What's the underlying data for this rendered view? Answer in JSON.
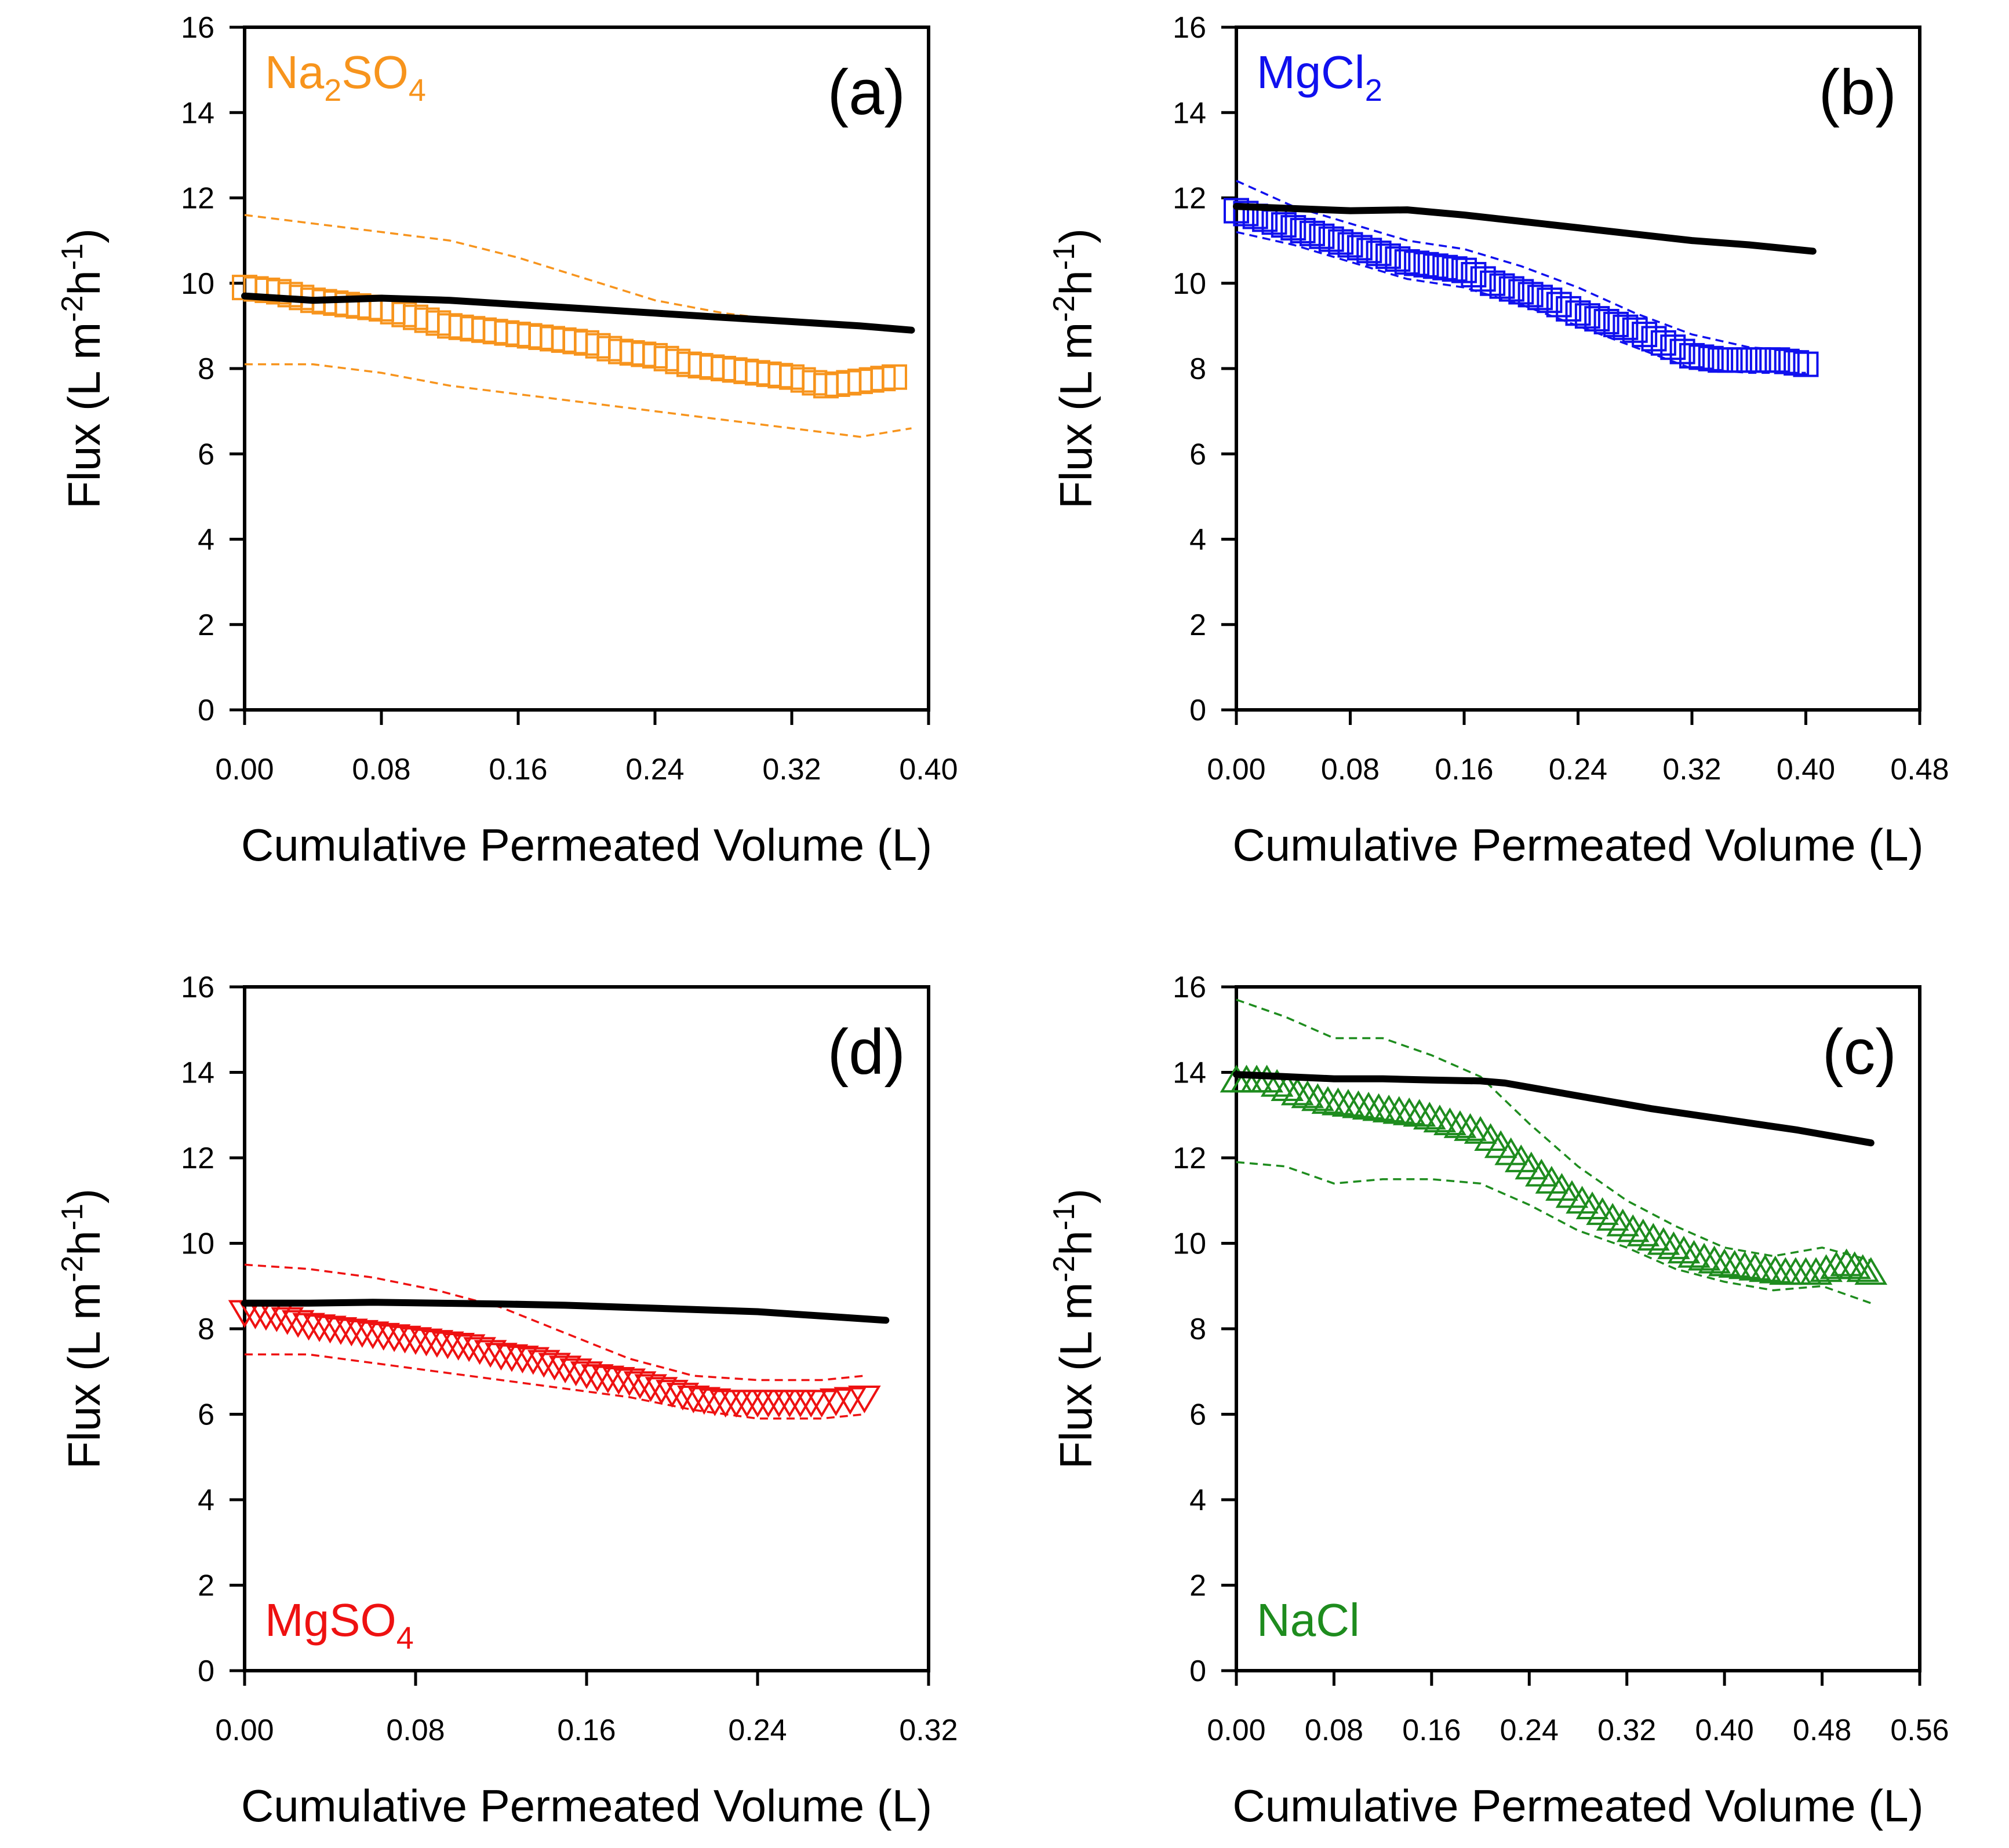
{
  "chart_data": [
    {
      "id": "a",
      "type": "scatter",
      "panel_label": "(a)",
      "title": "",
      "legend": {
        "base": "Na",
        "parts": [
          [
            "Na",
            false
          ],
          [
            "2",
            true
          ],
          [
            "SO",
            false
          ],
          [
            "4",
            true
          ]
        ],
        "color": "#f7941d",
        "position": "top-left"
      },
      "xlabel": "Cumulative Permeated Volume  (L)",
      "ylabel": "Flux  (L m",
      "ylabel_sup1": "-2",
      "ylabel_mid": "h",
      "ylabel_sup2": "-1",
      "ylabel_end": ")",
      "xlim": [
        0,
        0.4
      ],
      "ylim": [
        0,
        16
      ],
      "xticks": [
        "0.00",
        "0.08",
        "0.16",
        "0.24",
        "0.32",
        "0.40"
      ],
      "yticks": [
        "0",
        "2",
        "4",
        "6",
        "8",
        "10",
        "12",
        "14",
        "16"
      ],
      "marker": "square",
      "color": "#f7941d",
      "measured": {
        "x": [
          0.0,
          0.02,
          0.04,
          0.06,
          0.08,
          0.1,
          0.12,
          0.14,
          0.16,
          0.18,
          0.2,
          0.22,
          0.24,
          0.26,
          0.28,
          0.3,
          0.32,
          0.34,
          0.36,
          0.38
        ],
        "y": [
          9.9,
          9.8,
          9.6,
          9.5,
          9.4,
          9.2,
          9.0,
          8.9,
          8.8,
          8.7,
          8.6,
          8.4,
          8.3,
          8.1,
          8.0,
          7.9,
          7.8,
          7.6,
          7.7,
          7.8
        ]
      },
      "upper_band": {
        "x": [
          0.0,
          0.04,
          0.08,
          0.12,
          0.16,
          0.2,
          0.24,
          0.28,
          0.32,
          0.36,
          0.39
        ],
        "y": [
          11.6,
          11.4,
          11.2,
          11.0,
          10.6,
          10.1,
          9.6,
          9.3,
          9.1,
          9.0,
          8.9
        ]
      },
      "lower_band": {
        "x": [
          0.0,
          0.04,
          0.08,
          0.12,
          0.16,
          0.2,
          0.24,
          0.28,
          0.32,
          0.36,
          0.39
        ],
        "y": [
          8.1,
          8.1,
          7.9,
          7.6,
          7.4,
          7.2,
          7.0,
          6.8,
          6.6,
          6.4,
          6.6
        ]
      },
      "model": {
        "x": [
          0.0,
          0.04,
          0.08,
          0.12,
          0.16,
          0.2,
          0.24,
          0.28,
          0.32,
          0.36,
          0.39
        ],
        "y": [
          9.7,
          9.6,
          9.65,
          9.6,
          9.5,
          9.4,
          9.3,
          9.2,
          9.1,
          9.0,
          8.9
        ]
      }
    },
    {
      "id": "b",
      "type": "scatter",
      "panel_label": "(b)",
      "title": "",
      "legend": {
        "parts": [
          [
            "MgCl",
            false
          ],
          [
            "2",
            true
          ]
        ],
        "color": "#1010ee",
        "position": "top-left"
      },
      "xlabel": "Cumulative Permeated Volume  (L)",
      "ylabel": "Flux  (L m",
      "ylabel_sup1": "-2",
      "ylabel_mid": "h",
      "ylabel_sup2": "-1",
      "ylabel_end": ")",
      "xlim": [
        0,
        0.48
      ],
      "ylim": [
        0,
        16
      ],
      "xticks": [
        "0.00",
        "0.08",
        "0.16",
        "0.24",
        "0.32",
        "0.40",
        "0.48"
      ],
      "yticks": [
        "0",
        "2",
        "4",
        "6",
        "8",
        "10",
        "12",
        "14",
        "16"
      ],
      "marker": "square",
      "color": "#1010ee",
      "measured": {
        "x": [
          0.0,
          0.02,
          0.04,
          0.06,
          0.08,
          0.1,
          0.12,
          0.14,
          0.16,
          0.18,
          0.2,
          0.22,
          0.24,
          0.26,
          0.28,
          0.3,
          0.32,
          0.34,
          0.36,
          0.38,
          0.4
        ],
        "y": [
          11.7,
          11.5,
          11.3,
          11.1,
          10.9,
          10.7,
          10.5,
          10.4,
          10.3,
          10.0,
          9.8,
          9.6,
          9.3,
          9.1,
          8.9,
          8.6,
          8.3,
          8.2,
          8.2,
          8.2,
          8.1
        ]
      },
      "upper_band": {
        "x": [
          0.0,
          0.04,
          0.08,
          0.12,
          0.16,
          0.2,
          0.24,
          0.28,
          0.32,
          0.36,
          0.4
        ],
        "y": [
          12.4,
          11.8,
          11.4,
          11.0,
          10.8,
          10.4,
          9.9,
          9.3,
          8.8,
          8.5,
          8.4
        ]
      },
      "lower_band": {
        "x": [
          0.0,
          0.04,
          0.08,
          0.12,
          0.16,
          0.2,
          0.24,
          0.28,
          0.32,
          0.36,
          0.4
        ],
        "y": [
          11.2,
          10.9,
          10.5,
          10.1,
          9.9,
          9.5,
          9.0,
          8.5,
          8.0,
          7.9,
          7.9
        ]
      },
      "model": {
        "x": [
          0.0,
          0.04,
          0.08,
          0.12,
          0.16,
          0.2,
          0.24,
          0.28,
          0.32,
          0.36,
          0.405
        ],
        "y": [
          11.8,
          11.75,
          11.7,
          11.72,
          11.6,
          11.45,
          11.3,
          11.15,
          11.0,
          10.9,
          10.75
        ]
      }
    },
    {
      "id": "d",
      "type": "scatter",
      "panel_label": "(d)",
      "title": "",
      "legend": {
        "parts": [
          [
            "MgSO",
            false
          ],
          [
            "4",
            true
          ]
        ],
        "color": "#ee1111",
        "position": "bottom-left"
      },
      "xlabel": "Cumulative Permeated Volume  (L)",
      "ylabel": "Flux  (L m",
      "ylabel_sup1": "-2",
      "ylabel_mid": "h",
      "ylabel_sup2": "-1",
      "ylabel_end": ")",
      "xlim": [
        0,
        0.32
      ],
      "ylim": [
        0,
        16
      ],
      "xticks": [
        "0.00",
        "0.08",
        "0.16",
        "0.24",
        "0.32"
      ],
      "yticks": [
        "0",
        "2",
        "4",
        "6",
        "8",
        "10",
        "12",
        "14",
        "16"
      ],
      "marker": "triangle-down",
      "color": "#ee1111",
      "measured": {
        "x": [
          0.0,
          0.015,
          0.03,
          0.045,
          0.06,
          0.075,
          0.09,
          0.105,
          0.12,
          0.135,
          0.15,
          0.165,
          0.18,
          0.195,
          0.21,
          0.225,
          0.24,
          0.255,
          0.27,
          0.29
        ],
        "y": [
          8.4,
          8.3,
          8.1,
          8.0,
          7.9,
          7.8,
          7.7,
          7.6,
          7.4,
          7.3,
          7.1,
          6.9,
          6.8,
          6.6,
          6.4,
          6.3,
          6.3,
          6.3,
          6.3,
          6.4
        ]
      },
      "upper_band": {
        "x": [
          0.0,
          0.03,
          0.06,
          0.09,
          0.12,
          0.15,
          0.18,
          0.21,
          0.24,
          0.27,
          0.29
        ],
        "y": [
          9.5,
          9.4,
          9.2,
          8.9,
          8.5,
          7.9,
          7.3,
          6.9,
          6.8,
          6.8,
          6.9
        ]
      },
      "lower_band": {
        "x": [
          0.0,
          0.03,
          0.06,
          0.09,
          0.12,
          0.15,
          0.18,
          0.21,
          0.24,
          0.27,
          0.29
        ],
        "y": [
          7.4,
          7.4,
          7.2,
          7.0,
          6.8,
          6.6,
          6.4,
          6.1,
          5.9,
          5.9,
          6.0
        ]
      },
      "model": {
        "x": [
          0.0,
          0.03,
          0.06,
          0.09,
          0.12,
          0.15,
          0.18,
          0.21,
          0.24,
          0.27,
          0.3
        ],
        "y": [
          8.6,
          8.6,
          8.62,
          8.6,
          8.58,
          8.55,
          8.5,
          8.45,
          8.4,
          8.3,
          8.2
        ]
      }
    },
    {
      "id": "c",
      "type": "scatter",
      "panel_label": "(c)",
      "title": "",
      "legend": {
        "parts": [
          [
            "NaCl",
            false
          ]
        ],
        "color": "#1e8c1e",
        "position": "bottom-left"
      },
      "xlabel": "Cumulative Permeated Volume  (L)",
      "ylabel": "Flux  (L m",
      "ylabel_sup1": "-2",
      "ylabel_mid": "h",
      "ylabel_sup2": "-1",
      "ylabel_end": ")",
      "xlim": [
        0,
        0.56
      ],
      "ylim": [
        0,
        16
      ],
      "xticks": [
        "0.00",
        "0.08",
        "0.16",
        "0.24",
        "0.32",
        "0.40",
        "0.48",
        "0.56"
      ],
      "yticks": [
        "0",
        "2",
        "4",
        "6",
        "8",
        "10",
        "12",
        "14",
        "16"
      ],
      "marker": "triangle",
      "color": "#1e8c1e",
      "measured": {
        "x": [
          0.0,
          0.025,
          0.05,
          0.075,
          0.1,
          0.125,
          0.15,
          0.175,
          0.2,
          0.225,
          0.25,
          0.275,
          0.3,
          0.325,
          0.35,
          0.375,
          0.4,
          0.425,
          0.45,
          0.475,
          0.5,
          0.52
        ],
        "y": [
          13.8,
          13.8,
          13.5,
          13.3,
          13.2,
          13.1,
          13.0,
          12.8,
          12.6,
          12.1,
          11.6,
          11.1,
          10.7,
          10.3,
          10.0,
          9.7,
          9.5,
          9.4,
          9.3,
          9.3,
          9.5,
          9.3
        ]
      },
      "upper_band": {
        "x": [
          0.0,
          0.04,
          0.08,
          0.12,
          0.16,
          0.2,
          0.24,
          0.28,
          0.32,
          0.36,
          0.4,
          0.44,
          0.48,
          0.52
        ],
        "y": [
          15.7,
          15.3,
          14.8,
          14.8,
          14.4,
          13.9,
          12.8,
          11.8,
          11.0,
          10.4,
          9.9,
          9.7,
          9.9,
          9.6
        ]
      },
      "lower_band": {
        "x": [
          0.0,
          0.04,
          0.08,
          0.12,
          0.16,
          0.2,
          0.24,
          0.28,
          0.32,
          0.36,
          0.4,
          0.44,
          0.48,
          0.52
        ],
        "y": [
          11.9,
          11.8,
          11.4,
          11.5,
          11.5,
          11.4,
          10.9,
          10.3,
          9.9,
          9.4,
          9.1,
          8.9,
          9.0,
          8.6
        ]
      },
      "model": {
        "x": [
          0.0,
          0.04,
          0.08,
          0.12,
          0.16,
          0.2,
          0.22,
          0.28,
          0.34,
          0.4,
          0.46,
          0.52
        ],
        "y": [
          13.95,
          13.9,
          13.85,
          13.85,
          13.82,
          13.8,
          13.75,
          13.45,
          13.15,
          12.9,
          12.65,
          12.35
        ]
      }
    }
  ]
}
